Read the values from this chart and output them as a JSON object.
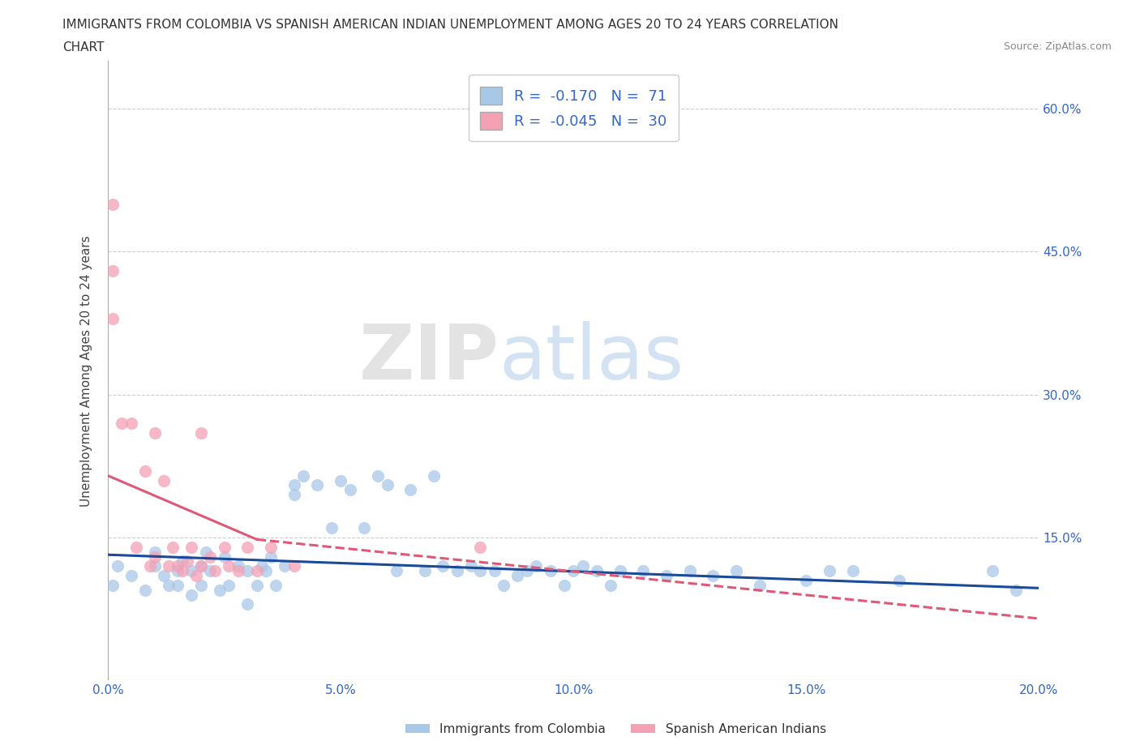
{
  "title_line1": "IMMIGRANTS FROM COLOMBIA VS SPANISH AMERICAN INDIAN UNEMPLOYMENT AMONG AGES 20 TO 24 YEARS CORRELATION",
  "title_line2": "CHART",
  "source": "Source: ZipAtlas.com",
  "ylabel": "Unemployment Among Ages 20 to 24 years",
  "xlim": [
    0.0,
    0.2
  ],
  "ylim": [
    0.0,
    0.65
  ],
  "xticks": [
    0.0,
    0.05,
    0.1,
    0.15,
    0.2
  ],
  "xtick_labels": [
    "0.0%",
    "5.0%",
    "10.0%",
    "15.0%",
    "20.0%"
  ],
  "ytick_positions": [
    0.15,
    0.3,
    0.45,
    0.6
  ],
  "ytick_labels": [
    "15.0%",
    "30.0%",
    "45.0%",
    "60.0%"
  ],
  "blue_color": "#A8C8E8",
  "pink_color": "#F4A0B5",
  "blue_line_color": "#1A4A9A",
  "pink_line_color": "#E05878",
  "R_blue": -0.17,
  "N_blue": 71,
  "R_pink": -0.045,
  "N_pink": 30,
  "legend_label_blue": "Immigrants from Colombia",
  "legend_label_pink": "Spanish American Indians",
  "watermark_zip": "ZIP",
  "watermark_atlas": "atlas",
  "background_color": "#ffffff",
  "grid_color": "#cccccc",
  "blue_scatter_x": [
    0.001,
    0.002,
    0.005,
    0.008,
    0.01,
    0.01,
    0.012,
    0.013,
    0.015,
    0.015,
    0.016,
    0.018,
    0.018,
    0.02,
    0.02,
    0.021,
    0.022,
    0.024,
    0.025,
    0.026,
    0.028,
    0.03,
    0.03,
    0.032,
    0.033,
    0.034,
    0.035,
    0.036,
    0.038,
    0.04,
    0.04,
    0.042,
    0.045,
    0.048,
    0.05,
    0.052,
    0.055,
    0.058,
    0.06,
    0.062,
    0.065,
    0.068,
    0.07,
    0.072,
    0.075,
    0.078,
    0.08,
    0.083,
    0.085,
    0.088,
    0.09,
    0.092,
    0.095,
    0.098,
    0.1,
    0.102,
    0.105,
    0.108,
    0.11,
    0.115,
    0.12,
    0.125,
    0.13,
    0.135,
    0.14,
    0.15,
    0.155,
    0.16,
    0.17,
    0.19,
    0.195
  ],
  "blue_scatter_y": [
    0.1,
    0.12,
    0.11,
    0.095,
    0.12,
    0.135,
    0.11,
    0.1,
    0.115,
    0.1,
    0.125,
    0.115,
    0.09,
    0.1,
    0.12,
    0.135,
    0.115,
    0.095,
    0.13,
    0.1,
    0.12,
    0.115,
    0.08,
    0.1,
    0.12,
    0.115,
    0.13,
    0.1,
    0.12,
    0.205,
    0.195,
    0.215,
    0.205,
    0.16,
    0.21,
    0.2,
    0.16,
    0.215,
    0.205,
    0.115,
    0.2,
    0.115,
    0.215,
    0.12,
    0.115,
    0.12,
    0.115,
    0.115,
    0.1,
    0.11,
    0.115,
    0.12,
    0.115,
    0.1,
    0.115,
    0.12,
    0.115,
    0.1,
    0.115,
    0.115,
    0.11,
    0.115,
    0.11,
    0.115,
    0.1,
    0.105,
    0.115,
    0.115,
    0.105,
    0.115,
    0.095
  ],
  "pink_scatter_x": [
    0.001,
    0.001,
    0.001,
    0.003,
    0.005,
    0.006,
    0.008,
    0.009,
    0.01,
    0.01,
    0.012,
    0.013,
    0.014,
    0.015,
    0.016,
    0.017,
    0.018,
    0.019,
    0.02,
    0.02,
    0.022,
    0.023,
    0.025,
    0.026,
    0.028,
    0.03,
    0.032,
    0.035,
    0.04,
    0.08
  ],
  "pink_scatter_y": [
    0.5,
    0.43,
    0.38,
    0.27,
    0.27,
    0.14,
    0.22,
    0.12,
    0.26,
    0.13,
    0.21,
    0.12,
    0.14,
    0.12,
    0.115,
    0.125,
    0.14,
    0.11,
    0.26,
    0.12,
    0.13,
    0.115,
    0.14,
    0.12,
    0.115,
    0.14,
    0.115,
    0.14,
    0.12,
    0.14
  ],
  "blue_trend_x0": 0.0,
  "blue_trend_y0": 0.132,
  "blue_trend_x1": 0.2,
  "blue_trend_y1": 0.097,
  "pink_trend_solid_x0": 0.0,
  "pink_trend_solid_y0": 0.215,
  "pink_trend_solid_x1": 0.032,
  "pink_trend_solid_y1": 0.148,
  "pink_trend_dash_x0": 0.032,
  "pink_trend_dash_y0": 0.148,
  "pink_trend_dash_x1": 0.2,
  "pink_trend_dash_y1": 0.065
}
